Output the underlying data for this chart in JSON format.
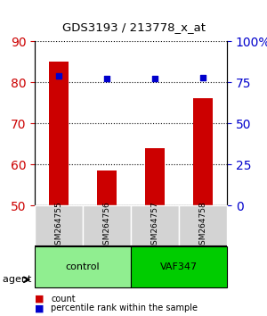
{
  "title": "GDS3193 / 213778_x_at",
  "categories": [
    "GSM264755",
    "GSM264756",
    "GSM264757",
    "GSM264758"
  ],
  "bar_values": [
    85,
    58.5,
    64,
    76
  ],
  "dot_values": [
    79,
    77,
    77,
    78
  ],
  "bar_color": "#cc0000",
  "dot_color": "#0000cc",
  "ylim_left": [
    50,
    90
  ],
  "ylim_right": [
    0,
    100
  ],
  "yticks_left": [
    50,
    60,
    70,
    80,
    90
  ],
  "yticks_right": [
    0,
    25,
    50,
    75,
    100
  ],
  "yticklabels_right": [
    "0",
    "25",
    "50",
    "75",
    "100%"
  ],
  "groups": [
    {
      "label": "control",
      "indices": [
        0,
        1
      ],
      "color": "#90ee90"
    },
    {
      "label": "VAF347",
      "indices": [
        2,
        3
      ],
      "color": "#00cc00"
    }
  ],
  "group_label_prefix": "agent",
  "legend_count_label": "count",
  "legend_pct_label": "percentile rank within the sample",
  "left_tick_color": "#cc0000",
  "right_tick_color": "#0000cc",
  "bar_width": 0.4,
  "background_color": "#ffffff"
}
